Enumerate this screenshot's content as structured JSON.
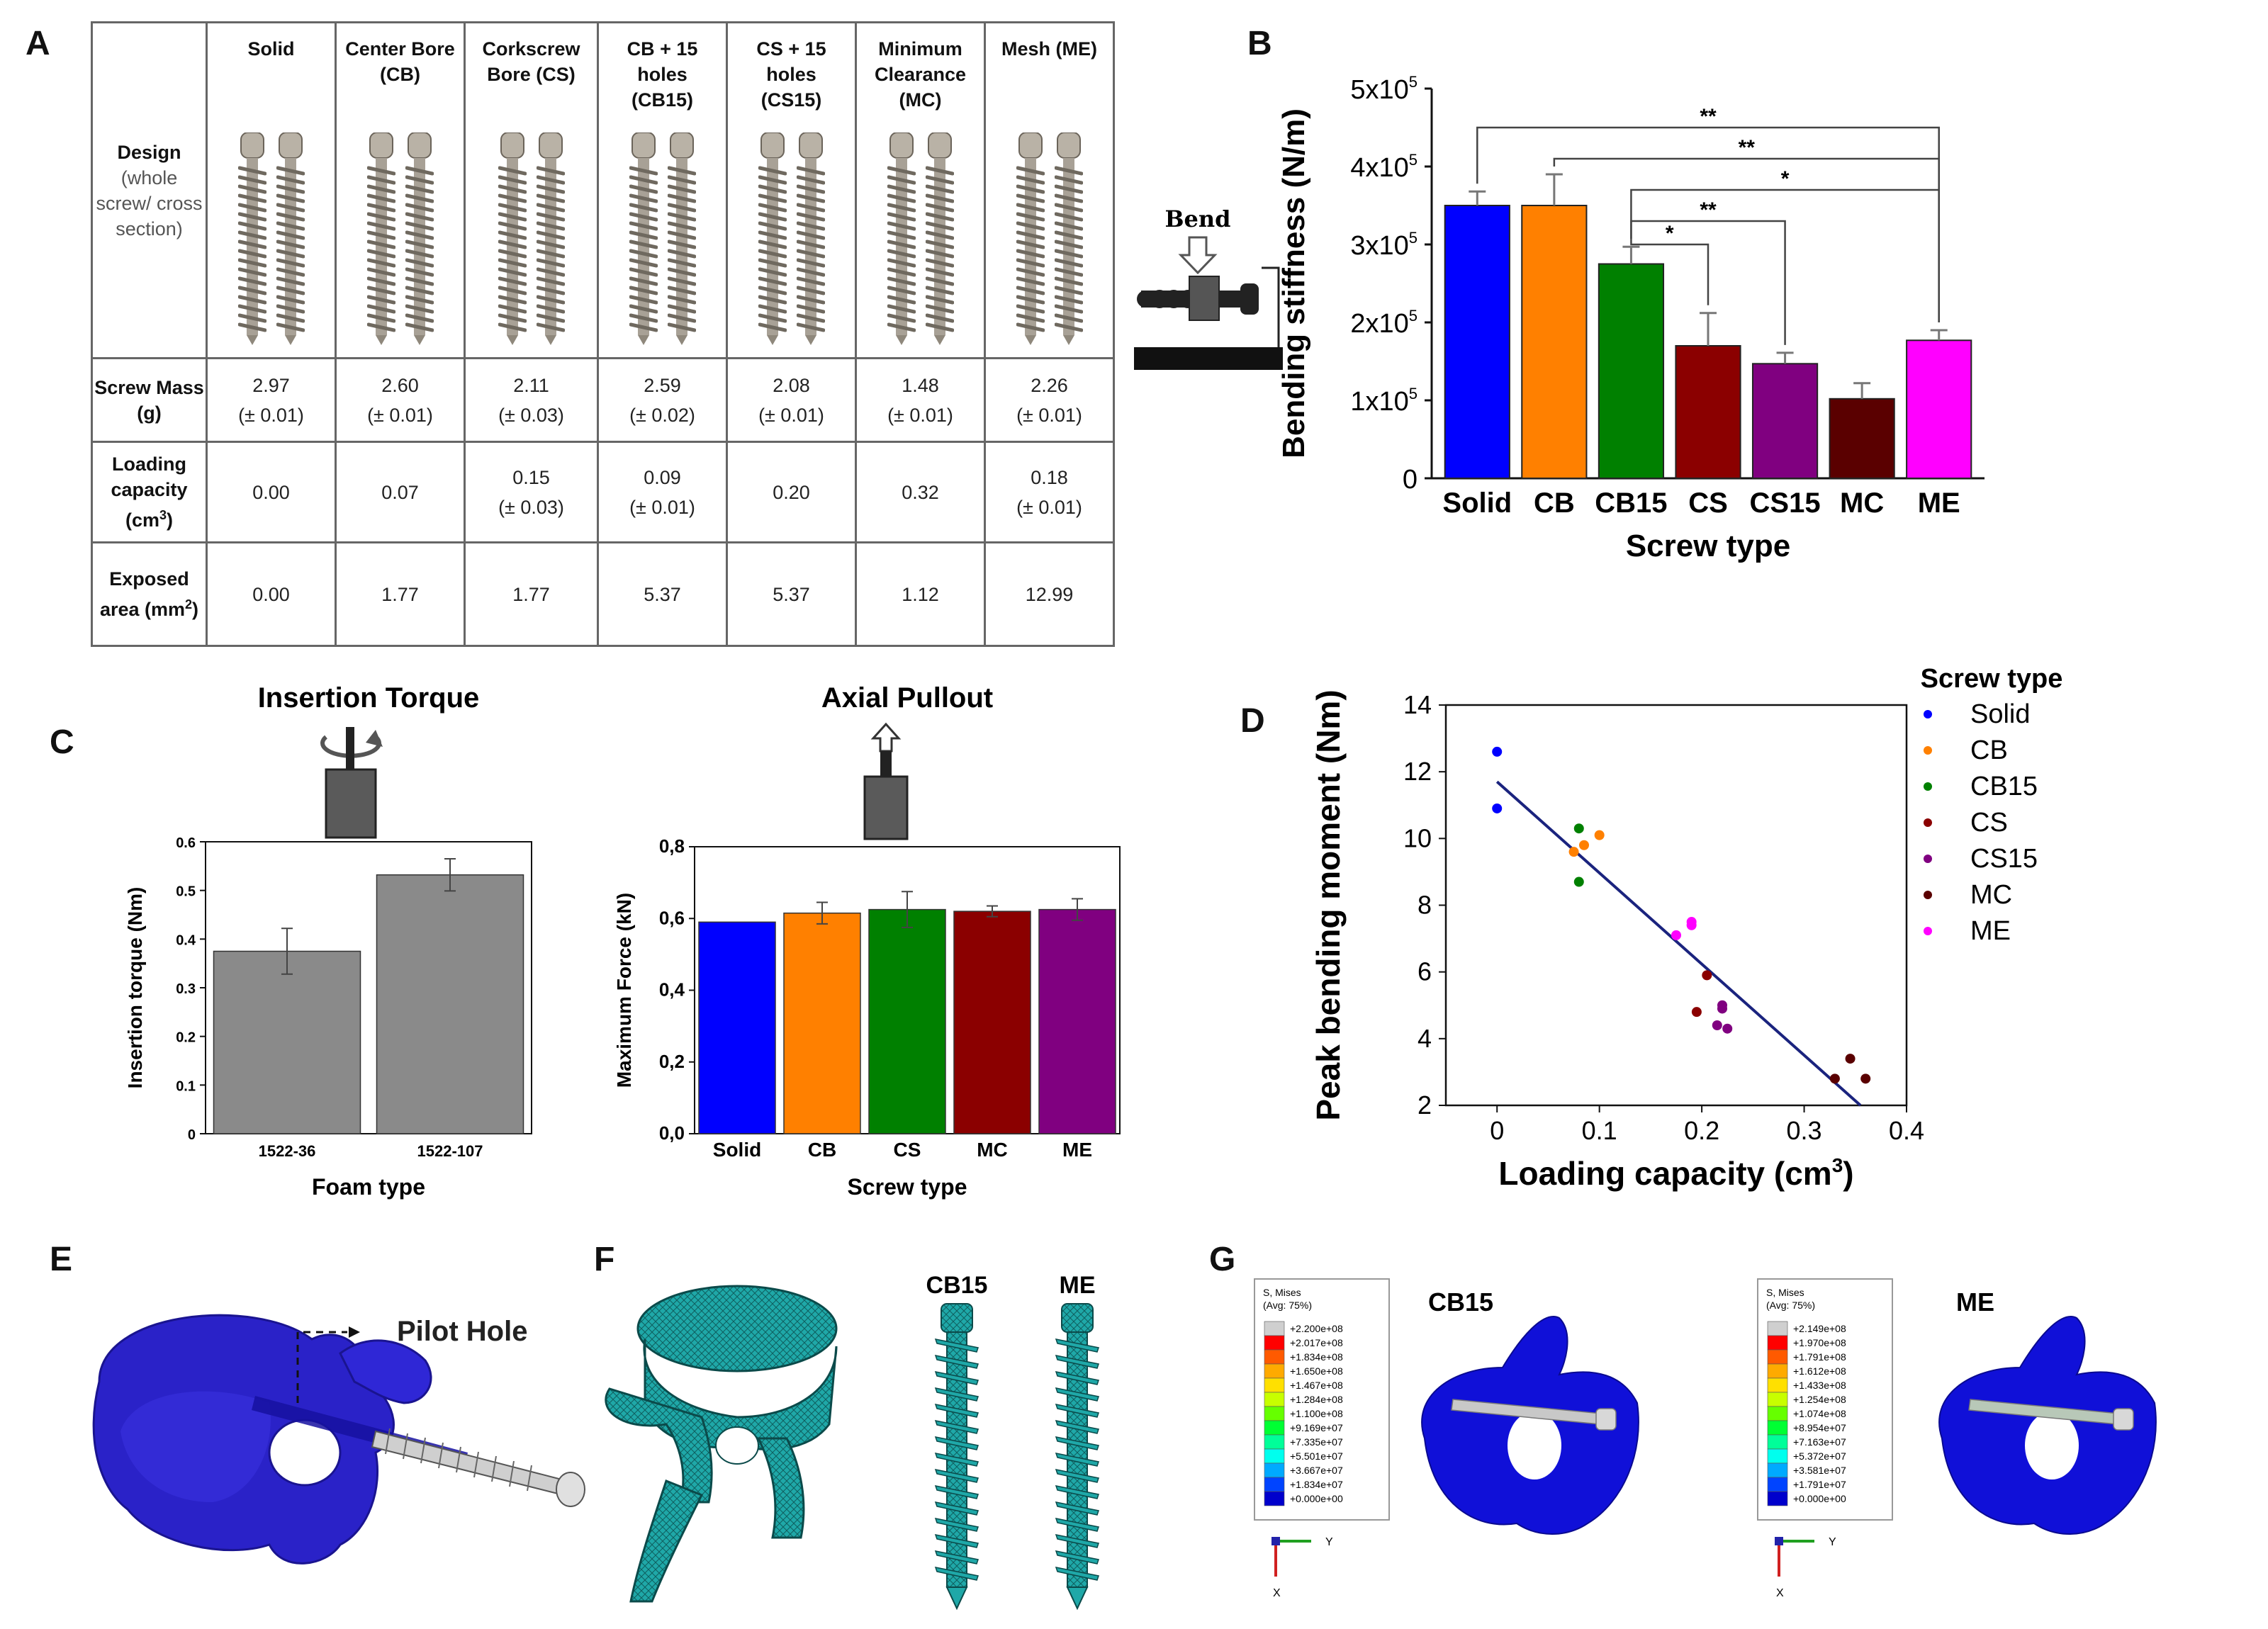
{
  "panel_letters": {
    "a": "A",
    "b": "B",
    "c": "C",
    "d": "D",
    "e": "E",
    "f": "F",
    "g": "G"
  },
  "tableA": {
    "headers": [
      "Solid",
      "Center Bore (CB)",
      "Corkscrew Bore (CS)",
      "CB + 15 holes (CB15)",
      "CS + 15 holes (CS15)",
      "Minimum Clearance (MC)",
      "Mesh (ME)"
    ],
    "design_label": "Design",
    "design_sublabel": "(whole screw/ cross section)",
    "rows": [
      {
        "label": "Screw Mass (g)",
        "values": [
          "2.97",
          "2.60",
          "2.11",
          "2.59",
          "2.08",
          "1.48",
          "2.26"
        ],
        "errors": [
          "(± 0.01)",
          "(± 0.01)",
          "(± 0.03)",
          "(± 0.02)",
          "(± 0.01)",
          "(± 0.01)",
          "(± 0.01)"
        ]
      },
      {
        "label": "Loading capacity (cm",
        "label_sup": "3",
        "label_end": ")",
        "values": [
          "0.00",
          "0.07",
          "0.15",
          "0.09",
          "0.20",
          "0.32",
          "0.18"
        ],
        "errors": [
          "",
          "",
          "(± 0.03)",
          "(± 0.01)",
          "",
          "",
          "(± 0.01)"
        ]
      },
      {
        "label": "Exposed area (mm",
        "label_sup": "2",
        "label_end": ")",
        "values": [
          "0.00",
          "1.77",
          "1.77",
          "5.37",
          "5.37",
          "1.12",
          "12.99"
        ],
        "errors": [
          "",
          "",
          "",
          "",
          "",
          "",
          ""
        ]
      }
    ]
  },
  "chart_data": [
    {
      "id": "B",
      "type": "bar",
      "categories": [
        "Solid",
        "CB",
        "CB15",
        "CS",
        "CS15",
        "MC",
        "ME"
      ],
      "values": [
        350000,
        350000,
        275000,
        170000,
        147000,
        102000,
        177000
      ],
      "errors": [
        18000,
        40000,
        22000,
        42000,
        14000,
        20000,
        13000
      ],
      "colors": [
        "#0000ff",
        "#ff8000",
        "#008000",
        "#8b0000",
        "#800080",
        "#5a0000",
        "#ff00ff"
      ],
      "title": "",
      "xlabel": "Screw type",
      "ylabel": "Bending stiffness (N/m)",
      "ylim": [
        0,
        500000
      ],
      "yticks": [
        "0",
        "1x10",
        "2x10",
        "3x10",
        "4x10",
        "5x10"
      ],
      "ytick_exp": "5",
      "significance": [
        {
          "from": "Solid",
          "to": "ME",
          "label": "**"
        },
        {
          "from": "CB",
          "to": "ME",
          "label": "**"
        },
        {
          "from": "CB15",
          "to": "ME",
          "label": "*"
        },
        {
          "from": "CB15",
          "to": "CS15",
          "label": "**"
        },
        {
          "from": "CB15",
          "to": "CS",
          "label": "*"
        }
      ],
      "inset_label": "Bend"
    },
    {
      "id": "C1",
      "type": "bar",
      "title": "Insertion Torque",
      "categories": [
        "1522-36",
        "1522-107"
      ],
      "values": [
        0.375,
        0.532
      ],
      "errors": [
        0.047,
        0.033
      ],
      "colors": [
        "#8a8a8a",
        "#8a8a8a"
      ],
      "xlabel": "Foam type",
      "ylabel": "Insertion torque (Nm)",
      "ylim": [
        0,
        0.6
      ],
      "yticks": [
        "0",
        "0.1",
        "0.2",
        "0.3",
        "0.4",
        "0.5",
        "0.6"
      ]
    },
    {
      "id": "C2",
      "type": "bar",
      "title": "Axial Pullout",
      "categories": [
        "Solid",
        "CB",
        "CS",
        "MC",
        "ME"
      ],
      "values": [
        0.59,
        0.615,
        0.625,
        0.62,
        0.625
      ],
      "errors": [
        0,
        0.03,
        0.05,
        0.015,
        0.03
      ],
      "colors": [
        "#0000ff",
        "#ff8000",
        "#008000",
        "#8b0000",
        "#800080"
      ],
      "xlabel": "Screw type",
      "ylabel": "Maximum Force (kN)",
      "ylim": [
        0,
        0.8
      ],
      "yticks": [
        "0,0",
        "0,2",
        "0,4",
        "0,6",
        "0,8"
      ]
    },
    {
      "id": "D",
      "type": "scatter",
      "xlabel": "Loading capacity (cm",
      "xlabel_sup": "3",
      "xlabel_end": ")",
      "ylabel": "Peak bending moment (Nm)",
      "xlim": [
        -0.05,
        0.4
      ],
      "ylim": [
        2,
        14
      ],
      "xticks": [
        "0",
        "0.1",
        "0.2",
        "0.3",
        "0.4"
      ],
      "yticks": [
        "2",
        "4",
        "6",
        "8",
        "10",
        "12",
        "14"
      ],
      "legend_title": "Screw type",
      "legend_position": "top-right",
      "series": [
        {
          "name": "Solid",
          "color": "#0000ff",
          "points": [
            [
              0.0,
              12.6
            ],
            [
              0.0,
              10.9
            ]
          ]
        },
        {
          "name": "CB",
          "color": "#ff8000",
          "points": [
            [
              0.1,
              10.1
            ],
            [
              0.085,
              9.8
            ],
            [
              0.075,
              9.6
            ]
          ]
        },
        {
          "name": "CB15",
          "color": "#008000",
          "points": [
            [
              0.08,
              10.3
            ],
            [
              0.08,
              8.7
            ]
          ]
        },
        {
          "name": "CS",
          "color": "#8b0000",
          "points": [
            [
              0.205,
              5.9
            ],
            [
              0.195,
              4.8
            ]
          ]
        },
        {
          "name": "CS15",
          "color": "#800080",
          "points": [
            [
              0.22,
              5.0
            ],
            [
              0.22,
              4.9
            ],
            [
              0.215,
              4.4
            ],
            [
              0.225,
              4.3
            ]
          ]
        },
        {
          "name": "MC",
          "color": "#5a0000",
          "points": [
            [
              0.33,
              2.8
            ],
            [
              0.36,
              2.8
            ],
            [
              0.345,
              3.4
            ]
          ]
        },
        {
          "name": "ME",
          "color": "#ff00ff",
          "points": [
            [
              0.19,
              7.5
            ],
            [
              0.19,
              7.4
            ],
            [
              0.175,
              7.1
            ]
          ]
        }
      ],
      "fit_line": {
        "color": "#1a237e",
        "from": [
          0.0,
          11.7
        ],
        "to": [
          0.355,
          2.0
        ]
      }
    }
  ],
  "panelE": {
    "label": "Pilot Hole"
  },
  "panelF": {
    "labels": [
      "CB15",
      "ME"
    ]
  },
  "panelG": {
    "labels": [
      "CB15",
      "ME"
    ],
    "legend_title": "S, Mises",
    "legend_sub": "(Avg: 75%)",
    "legend1_values": [
      "+2.200e+08",
      "+2.017e+08",
      "+1.834e+08",
      "+1.650e+08",
      "+1.467e+08",
      "+1.284e+08",
      "+1.100e+08",
      "+9.169e+07",
      "+7.335e+07",
      "+5.501e+07",
      "+3.667e+07",
      "+1.834e+07",
      "+0.000e+00"
    ],
    "legend2_values": [
      "+2.149e+08",
      "+1.970e+08",
      "+1.791e+08",
      "+1.612e+08",
      "+1.433e+08",
      "+1.254e+08",
      "+1.074e+08",
      "+8.954e+07",
      "+7.163e+07",
      "+5.372e+07",
      "+3.581e+07",
      "+1.791e+07",
      "+0.000e+00"
    ],
    "legend_colors": [
      "#cfcfcf",
      "#ff0000",
      "#ff5a00",
      "#ffaa00",
      "#ffe000",
      "#c8ff00",
      "#66ff00",
      "#00ff33",
      "#00ff99",
      "#00ffee",
      "#00aaff",
      "#0044ff",
      "#0000cc"
    ],
    "axis_labels": [
      "Y",
      "X"
    ]
  }
}
